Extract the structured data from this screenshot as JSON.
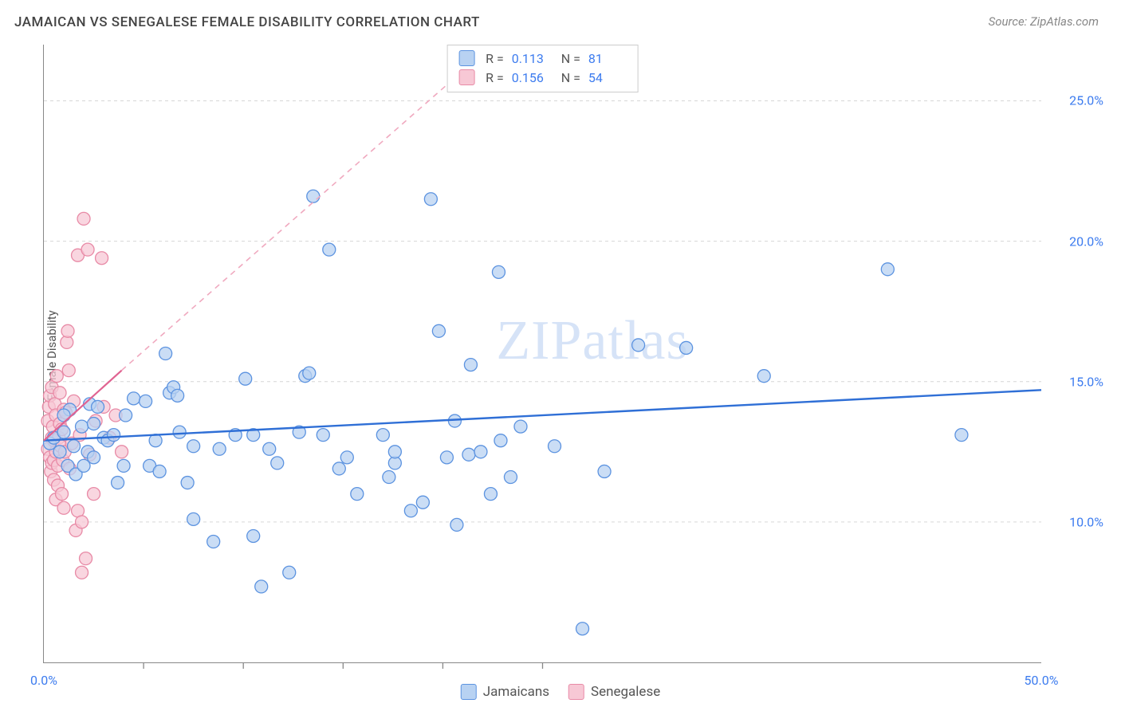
{
  "title": "JAMAICAN VS SENEGALESE FEMALE DISABILITY CORRELATION CHART",
  "source": "Source: ZipAtlas.com",
  "ylabel": "Female Disability",
  "watermark_a": "ZIP",
  "watermark_b": "atlas",
  "chart": {
    "type": "scatter",
    "xlim": [
      0,
      50
    ],
    "ylim": [
      5,
      27
    ],
    "yticks": [
      10,
      15,
      20,
      25
    ],
    "ytick_labels": [
      "10.0%",
      "15.0%",
      "20.0%",
      "25.0%"
    ],
    "xticks_major": [
      0,
      50
    ],
    "xtick_labels": [
      "0.0%",
      "50.0%"
    ],
    "xticks_minor": [
      5,
      10,
      15,
      20,
      25
    ],
    "grid_color": "#d6d6d6",
    "grid_dash": "4 4",
    "axis_color": "#888888",
    "tick_color": "#888888",
    "background_color": "#ffffff",
    "marker_radius": 8,
    "marker_stroke_width": 1.3,
    "series": [
      {
        "name": "Jamaicans",
        "fill": "#b8d2f2",
        "stroke": "#5c93e0",
        "opacity": 0.75,
        "R": "0.113",
        "N": "81",
        "trend": {
          "x1": 0,
          "y1": 12.9,
          "x2": 50,
          "y2": 14.7,
          "color": "#2f6fd6",
          "width": 2.4,
          "dash": "none"
        },
        "points": [
          [
            0.3,
            12.8
          ],
          [
            0.5,
            13.0
          ],
          [
            0.8,
            12.5
          ],
          [
            1.0,
            13.2
          ],
          [
            1.2,
            12.0
          ],
          [
            1.3,
            14.0
          ],
          [
            1.5,
            12.7
          ],
          [
            1.6,
            11.7
          ],
          [
            1.9,
            13.4
          ],
          [
            2.0,
            12.0
          ],
          [
            2.2,
            12.5
          ],
          [
            2.3,
            14.2
          ],
          [
            2.5,
            13.5
          ],
          [
            2.5,
            12.3
          ],
          [
            2.7,
            14.1
          ],
          [
            3.0,
            13.0
          ],
          [
            3.2,
            12.9
          ],
          [
            3.5,
            13.1
          ],
          [
            3.7,
            11.4
          ],
          [
            4.0,
            12.0
          ],
          [
            4.1,
            13.8
          ],
          [
            4.5,
            14.4
          ],
          [
            5.1,
            14.3
          ],
          [
            5.3,
            12.0
          ],
          [
            5.6,
            12.9
          ],
          [
            5.8,
            11.8
          ],
          [
            6.1,
            16.0
          ],
          [
            6.3,
            14.6
          ],
          [
            6.5,
            14.8
          ],
          [
            6.7,
            14.5
          ],
          [
            6.8,
            13.2
          ],
          [
            7.2,
            11.4
          ],
          [
            7.5,
            12.7
          ],
          [
            7.5,
            10.1
          ],
          [
            8.5,
            9.3
          ],
          [
            8.8,
            12.6
          ],
          [
            9.6,
            13.1
          ],
          [
            10.1,
            15.1
          ],
          [
            10.5,
            9.5
          ],
          [
            10.5,
            13.1
          ],
          [
            10.9,
            7.7
          ],
          [
            11.3,
            12.6
          ],
          [
            11.7,
            12.1
          ],
          [
            12.3,
            8.2
          ],
          [
            12.8,
            13.2
          ],
          [
            13.1,
            15.2
          ],
          [
            13.3,
            15.3
          ],
          [
            13.5,
            21.6
          ],
          [
            14.0,
            13.1
          ],
          [
            14.3,
            19.7
          ],
          [
            14.8,
            11.9
          ],
          [
            15.2,
            12.3
          ],
          [
            15.7,
            11.0
          ],
          [
            17.0,
            13.1
          ],
          [
            17.3,
            11.6
          ],
          [
            17.6,
            12.1
          ],
          [
            17.6,
            12.5
          ],
          [
            18.4,
            10.4
          ],
          [
            19.0,
            10.7
          ],
          [
            19.4,
            21.5
          ],
          [
            19.8,
            16.8
          ],
          [
            20.2,
            12.3
          ],
          [
            20.6,
            13.6
          ],
          [
            20.7,
            9.9
          ],
          [
            21.3,
            12.4
          ],
          [
            21.4,
            15.6
          ],
          [
            21.9,
            12.5
          ],
          [
            22.4,
            11.0
          ],
          [
            22.8,
            18.9
          ],
          [
            22.9,
            12.9
          ],
          [
            23.4,
            11.6
          ],
          [
            23.9,
            13.4
          ],
          [
            25.6,
            12.7
          ],
          [
            27.0,
            6.2
          ],
          [
            28.1,
            11.8
          ],
          [
            29.8,
            16.3
          ],
          [
            32.2,
            16.2
          ],
          [
            36.1,
            15.2
          ],
          [
            42.3,
            19.0
          ],
          [
            46.0,
            13.1
          ],
          [
            1.0,
            13.8
          ]
        ]
      },
      {
        "name": "Senegalese",
        "fill": "#f7c8d5",
        "stroke": "#e88aa6",
        "opacity": 0.75,
        "R": "0.156",
        "N": "54",
        "trend_solid": {
          "x1": 0,
          "y1": 12.9,
          "x2": 3.9,
          "y2": 15.4,
          "color": "#e06391",
          "width": 2.2
        },
        "trend_dash": {
          "x1": 3.9,
          "y1": 15.4,
          "x2": 22.5,
          "y2": 27.0,
          "color": "#f0a9bf",
          "width": 1.6,
          "dash": "7 6"
        },
        "points": [
          [
            0.2,
            12.6
          ],
          [
            0.2,
            13.6
          ],
          [
            0.25,
            14.1
          ],
          [
            0.3,
            12.3
          ],
          [
            0.3,
            14.5
          ],
          [
            0.35,
            11.8
          ],
          [
            0.4,
            12.1
          ],
          [
            0.4,
            13.0
          ],
          [
            0.4,
            14.8
          ],
          [
            0.45,
            13.4
          ],
          [
            0.5,
            11.5
          ],
          [
            0.5,
            12.2
          ],
          [
            0.5,
            12.9
          ],
          [
            0.55,
            14.2
          ],
          [
            0.6,
            10.8
          ],
          [
            0.6,
            12.5
          ],
          [
            0.6,
            13.8
          ],
          [
            0.65,
            15.2
          ],
          [
            0.7,
            11.3
          ],
          [
            0.7,
            12.0
          ],
          [
            0.75,
            13.0
          ],
          [
            0.8,
            13.5
          ],
          [
            0.8,
            14.6
          ],
          [
            0.85,
            12.7
          ],
          [
            0.9,
            11.0
          ],
          [
            0.9,
            13.3
          ],
          [
            0.95,
            12.2
          ],
          [
            1.0,
            14.0
          ],
          [
            1.0,
            10.5
          ],
          [
            1.05,
            12.5
          ],
          [
            1.1,
            13.9
          ],
          [
            1.15,
            16.4
          ],
          [
            1.2,
            16.8
          ],
          [
            1.25,
            15.4
          ],
          [
            1.3,
            11.9
          ],
          [
            1.4,
            12.8
          ],
          [
            1.5,
            14.3
          ],
          [
            1.6,
            9.7
          ],
          [
            1.7,
            10.4
          ],
          [
            1.7,
            19.5
          ],
          [
            1.8,
            13.1
          ],
          [
            1.9,
            10.0
          ],
          [
            2.0,
            20.8
          ],
          [
            2.1,
            8.7
          ],
          [
            2.2,
            19.7
          ],
          [
            2.3,
            12.4
          ],
          [
            2.5,
            11.0
          ],
          [
            2.6,
            13.6
          ],
          [
            2.9,
            19.4
          ],
          [
            3.0,
            14.1
          ],
          [
            3.3,
            13.0
          ],
          [
            3.6,
            13.8
          ],
          [
            3.9,
            12.5
          ],
          [
            1.9,
            8.2
          ]
        ]
      }
    ],
    "legend_labels": {
      "series1": "Jamaicans",
      "series2": "Senegalese",
      "R": "R  =",
      "N": "N  ="
    }
  }
}
